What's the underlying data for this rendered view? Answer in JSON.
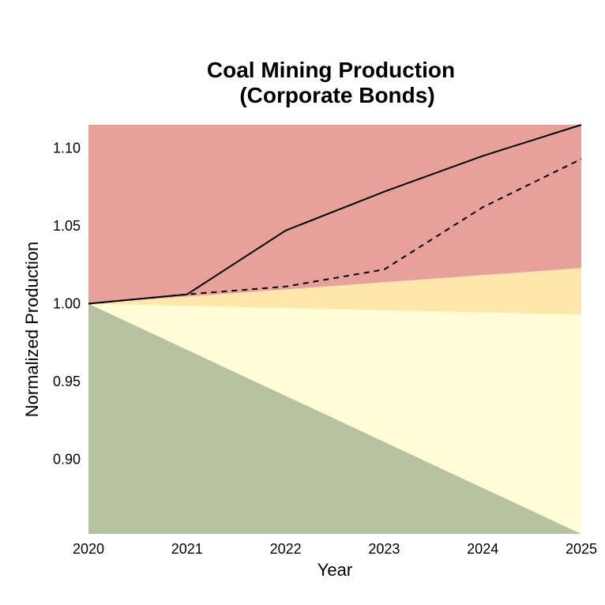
{
  "chart_data": {
    "type": "area",
    "title_lines": [
      "Coal Mining Production",
      "(Corporate Bonds)"
    ],
    "xlabel": "Year",
    "ylabel": "Normalized Production",
    "xlim": [
      2020,
      2025
    ],
    "ylim": [
      0.852,
      1.115
    ],
    "x_ticks": [
      "2020",
      "2021",
      "2022",
      "2023",
      "2024",
      "2025"
    ],
    "y_ticks": [
      "0.90",
      "0.95",
      "1.00",
      "1.05",
      "1.10"
    ],
    "x": [
      2020,
      2021,
      2022,
      2023,
      2024,
      2025
    ],
    "bands": [
      {
        "color": "#b7c3a0",
        "lower": [
          0.852,
          0.852,
          0.852,
          0.852,
          0.852,
          0.852
        ],
        "upper": [
          1.0,
          0.9704,
          0.9408,
          0.9112,
          0.8816,
          0.852
        ]
      },
      {
        "color": "#fffdd6",
        "lower": [
          1.0,
          0.9704,
          0.9408,
          0.9112,
          0.8816,
          0.852
        ],
        "upper": [
          1.0,
          0.9986,
          0.9972,
          0.9958,
          0.9944,
          0.993
        ]
      },
      {
        "color": "#fde7aa",
        "lower": [
          1.0,
          0.9986,
          0.9972,
          0.9958,
          0.9944,
          0.993
        ],
        "upper": [
          1.0,
          1.0046,
          1.0092,
          1.0138,
          1.0184,
          1.023
        ]
      },
      {
        "color": "#e8a09a",
        "lower": [
          1.0,
          1.0046,
          1.0092,
          1.0138,
          1.0184,
          1.023
        ],
        "upper": [
          1.115,
          1.115,
          1.115,
          1.115,
          1.115,
          1.115
        ]
      }
    ],
    "series": [
      {
        "style": "solid",
        "color": "#000000",
        "values": [
          1.0,
          1.006,
          1.047,
          1.072,
          1.095,
          1.115
        ]
      },
      {
        "style": "dashed",
        "color": "#000000",
        "values": [
          1.0,
          1.006,
          1.011,
          1.022,
          1.062,
          1.093
        ]
      }
    ]
  }
}
